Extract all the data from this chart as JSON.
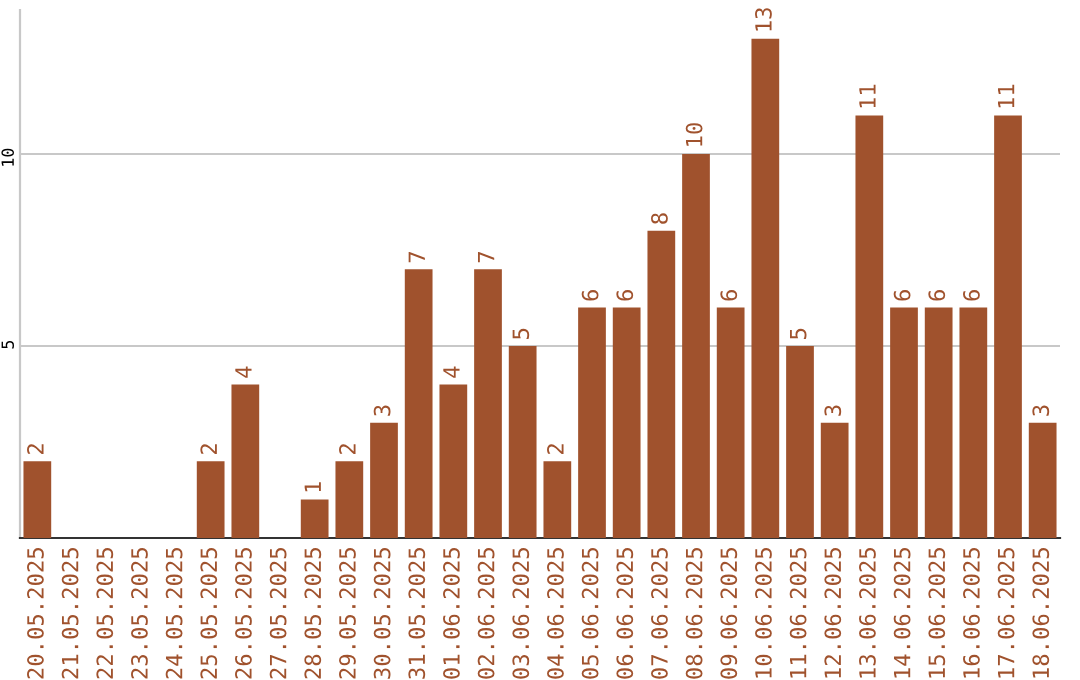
{
  "chart_data": {
    "type": "bar",
    "categories": [
      "20.05.2025",
      "21.05.2025",
      "22.05.2025",
      "23.05.2025",
      "24.05.2025",
      "25.05.2025",
      "26.05.2025",
      "27.05.2025",
      "28.05.2025",
      "29.05.2025",
      "30.05.2025",
      "31.05.2025",
      "01.06.2025",
      "02.06.2025",
      "03.06.2025",
      "04.06.2025",
      "05.06.2025",
      "06.06.2025",
      "07.06.2025",
      "08.06.2025",
      "09.06.2025",
      "10.06.2025",
      "11.06.2025",
      "12.06.2025",
      "13.06.2025",
      "14.06.2025",
      "15.06.2025",
      "16.06.2025",
      "17.06.2025",
      "18.06.2025"
    ],
    "series": [
      {
        "color": "#a0522d",
        "values": [
          2,
          0,
          0,
          0,
          0,
          2,
          4,
          0,
          1,
          2,
          3,
          7,
          4,
          7,
          5,
          2,
          6,
          6,
          8,
          10,
          6,
          13,
          5,
          3,
          11,
          6,
          6,
          6,
          11,
          3
        ],
        "value_labels": [
          "2",
          null,
          null,
          null,
          null,
          "2",
          "4",
          null,
          "1",
          "2",
          "3",
          "7",
          "4",
          "7",
          "5",
          "2",
          "6",
          "6",
          "8",
          "10",
          "6",
          "13",
          "5",
          "3",
          "11",
          "6",
          "6",
          "6",
          "11",
          "3"
        ]
      }
    ],
    "ylim": [
      0,
      13.75
    ],
    "yticks": [
      5,
      10
    ],
    "grid": "y",
    "legend": false
  }
}
